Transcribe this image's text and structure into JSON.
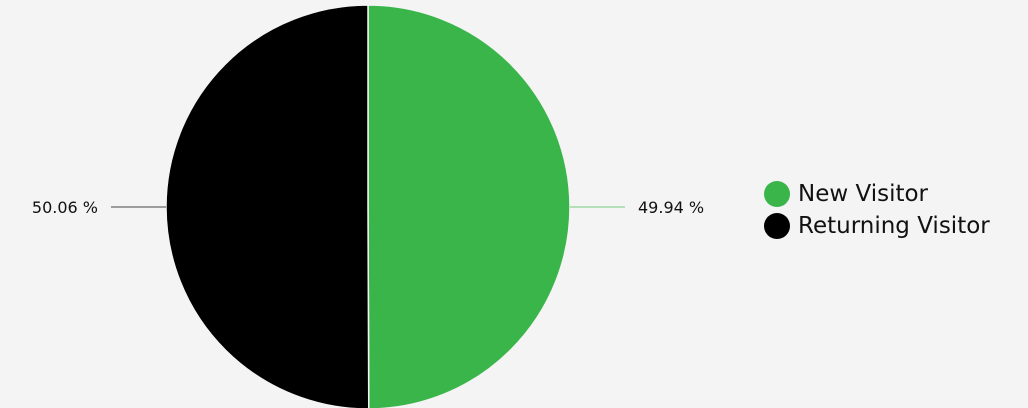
{
  "chart_data": {
    "type": "pie",
    "title": "",
    "slices": [
      {
        "name": "New Visitor",
        "value": 49.94,
        "label": "49.94 %",
        "color": "#3ab54a"
      },
      {
        "name": "Returning Visitor",
        "value": 50.06,
        "label": "50.06 %",
        "color": "#000000"
      }
    ],
    "legend": {
      "position": "right",
      "items": [
        "New Visitor",
        "Returning Visitor"
      ]
    },
    "start_angle": "top",
    "direction": "clockwise"
  }
}
